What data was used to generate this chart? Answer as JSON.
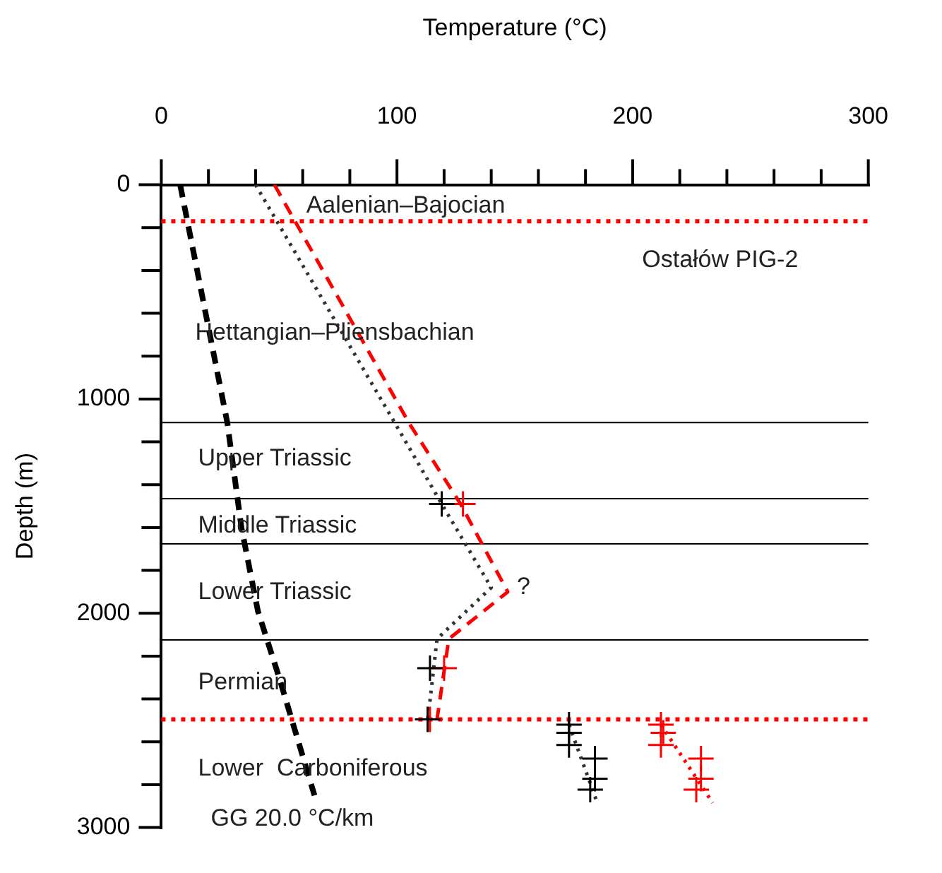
{
  "chart_data": {
    "type": "line",
    "xlabel": "Temperature (°C)",
    "ylabel": "Depth (m)",
    "xlim": [
      0,
      300
    ],
    "xticks": [
      0,
      {
        "value": 20,
        "label": null
      },
      {
        "value": 40,
        "label": null
      },
      {
        "value": 60,
        "label": null
      },
      {
        "value": 80,
        "label": null
      },
      100,
      {
        "value": 120,
        "label": null
      },
      {
        "value": 140,
        "label": null
      },
      {
        "value": 160,
        "label": null
      },
      {
        "value": 180,
        "label": null
      },
      200,
      {
        "value": 220,
        "label": null
      },
      {
        "value": 240,
        "label": null
      },
      {
        "value": 260,
        "label": null
      },
      {
        "value": 280,
        "label": null
      },
      300
    ],
    "ylim": [
      3000,
      0
    ],
    "yticks": [
      0,
      {
        "value": 200,
        "label": null
      },
      {
        "value": 400,
        "label": null
      },
      {
        "value": 600,
        "label": null
      },
      {
        "value": 800,
        "label": null
      },
      1000,
      {
        "value": 1200,
        "label": null
      },
      {
        "value": 1400,
        "label": null
      },
      {
        "value": 1600,
        "label": null
      },
      {
        "value": 1800,
        "label": null
      },
      2000,
      {
        "value": 2200,
        "label": null
      },
      {
        "value": 2400,
        "label": null
      },
      {
        "value": 2600,
        "label": null
      },
      {
        "value": 2800,
        "label": null
      },
      3000
    ],
    "grid": false,
    "legend": false,
    "series": [
      {
        "type": "line",
        "color": "#000000",
        "line_style": "dashed",
        "marker": "none",
        "x": [
          8,
          28,
          34,
          41,
          50,
          65
        ],
        "values": [
          0,
          1110,
          1600,
          1990,
          2300,
          2850
        ]
      },
      {
        "type": "line",
        "color": "#333333",
        "line_style": "dotted",
        "marker": "none",
        "x": [
          40,
          99,
          119,
          140,
          117,
          114,
          113
        ],
        "values": [
          0,
          1110,
          1490,
          1880,
          2120,
          2410,
          2495
        ]
      },
      {
        "type": "line",
        "color": "#ff0000",
        "line_style": "dashed",
        "marker": "none",
        "x": [
          48,
          105,
          127,
          147,
          122,
          120,
          117
        ],
        "values": [
          0,
          1110,
          1490,
          1900,
          2120,
          2270,
          2495
        ]
      },
      {
        "type": "line",
        "color": "#333333",
        "line_style": "dotted",
        "marker": "none",
        "x": [
          173,
          185
        ],
        "values": [
          2520,
          2885
        ]
      },
      {
        "type": "line",
        "color": "#ff0000",
        "line_style": "dotted",
        "marker": "none",
        "x": [
          212,
          234
        ],
        "values": [
          2520,
          2885
        ]
      },
      {
        "type": "scatter",
        "color": "#000000",
        "marker": "cross",
        "x": [
          119,
          114,
          113,
          173,
          173,
          173,
          184,
          184,
          182
        ],
        "values": [
          1490,
          2256,
          2495,
          2520,
          2558,
          2615,
          2678,
          2772,
          2823
        ]
      },
      {
        "type": "scatter",
        "color": "#ff0000",
        "marker": "cross",
        "x": [
          128,
          120,
          114,
          212,
          213,
          212,
          229,
          229,
          227
        ],
        "values": [
          1490,
          2256,
          2495,
          2520,
          2558,
          2615,
          2678,
          2772,
          2823
        ]
      }
    ],
    "ref_lines": [
      {
        "axis": "y",
        "value": 170,
        "color": "#ff0000",
        "line_style": "dotted"
      },
      {
        "axis": "y",
        "value": 1110,
        "color": "#000000",
        "line_style": "solid"
      },
      {
        "axis": "y",
        "value": 1465,
        "color": "#000000",
        "line_style": "solid"
      },
      {
        "axis": "y",
        "value": 1676,
        "color": "#000000",
        "line_style": "solid"
      },
      {
        "axis": "y",
        "value": 2124,
        "color": "#000000",
        "line_style": "solid"
      },
      {
        "axis": "y",
        "value": 2495,
        "color": "#ff0000",
        "line_style": "dotted"
      }
    ],
    "annotations": [
      "Aalenian–Bajocian",
      "Ostałów PIG-2",
      "Hettangian–Pliensbachian",
      "Upper Triassic",
      "Middle Triassic",
      "Lower Triassic",
      "Permian",
      "Lower  Carboniferous",
      "?",
      "GG 20.0 °C/km"
    ]
  }
}
